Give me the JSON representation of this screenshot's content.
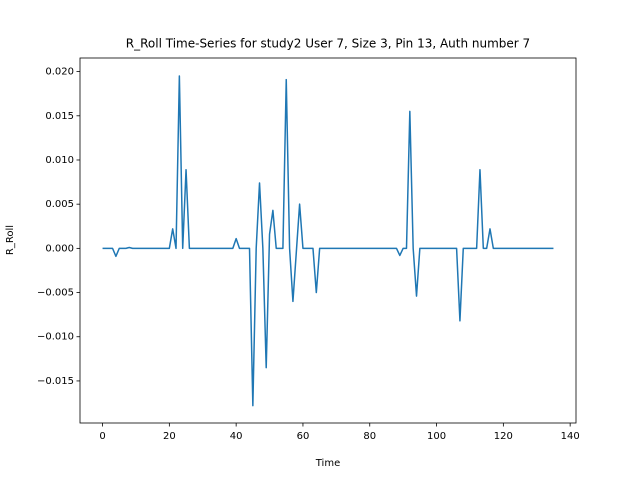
{
  "chart_data": {
    "type": "line",
    "title": "R_Roll Time-Series for study2 User 7, Size 3, Pin 13, Auth number 7",
    "x_label": "Time",
    "y_label": "R_Roll",
    "x": [
      0,
      1,
      2,
      3,
      4,
      5,
      6,
      7,
      8,
      9,
      10,
      11,
      12,
      13,
      14,
      15,
      16,
      17,
      18,
      19,
      20,
      21,
      22,
      23,
      24,
      25,
      26,
      27,
      28,
      29,
      30,
      31,
      32,
      33,
      34,
      35,
      36,
      37,
      38,
      39,
      40,
      41,
      42,
      43,
      44,
      45,
      46,
      47,
      48,
      49,
      50,
      51,
      52,
      53,
      54,
      55,
      56,
      57,
      58,
      59,
      60,
      61,
      62,
      63,
      64,
      65,
      66,
      67,
      68,
      69,
      70,
      71,
      72,
      73,
      74,
      75,
      76,
      77,
      78,
      79,
      80,
      81,
      82,
      83,
      84,
      85,
      86,
      87,
      88,
      89,
      90,
      91,
      92,
      93,
      94,
      95,
      96,
      97,
      98,
      99,
      100,
      101,
      102,
      103,
      104,
      105,
      106,
      107,
      108,
      109,
      110,
      111,
      112,
      113,
      114,
      115,
      116,
      117,
      118,
      119,
      120,
      121,
      122,
      123,
      124,
      125,
      126,
      127,
      128,
      129,
      130,
      131,
      132,
      133,
      134,
      135
    ],
    "series": [
      {
        "name": "R_Roll",
        "color": "#1f77b4",
        "values": [
          0,
          0,
          0,
          0,
          -0.0009,
          0,
          0,
          0,
          0.0001,
          0,
          0,
          0,
          0,
          0,
          0,
          0,
          0,
          0,
          0,
          0,
          0,
          0.0022,
          0,
          0.0195,
          0,
          0.0089,
          0,
          0,
          0,
          0,
          0,
          0,
          0,
          0,
          0,
          0,
          0,
          0,
          0,
          0,
          0.0011,
          0,
          0,
          0,
          0,
          -0.0178,
          0,
          0.0074,
          0,
          -0.0135,
          0.0016,
          0.0043,
          0,
          0,
          0,
          0.0191,
          0,
          -0.006,
          -0.0005,
          0.005,
          0,
          0,
          0,
          0,
          -0.005,
          0,
          0,
          0,
          0,
          0,
          0,
          0,
          0,
          0,
          0,
          0,
          0,
          0,
          0,
          0,
          0,
          0,
          0,
          0,
          0,
          0,
          0,
          0,
          0,
          -0.0008,
          0,
          0,
          0.0155,
          0,
          -0.0054,
          0,
          0,
          0,
          0,
          0,
          0,
          0,
          0,
          0,
          0,
          0,
          0,
          -0.0082,
          0,
          0,
          0,
          0,
          0,
          0.0089,
          0,
          0,
          0.0022,
          0,
          0,
          0,
          0,
          0,
          0,
          0,
          0,
          0,
          0,
          0,
          0,
          0,
          0,
          0,
          0,
          0,
          0,
          0
        ]
      }
    ],
    "xlim": [
      -6.75,
      141.75
    ],
    "ylim": [
      -0.01976,
      0.02154
    ],
    "xticks": [
      0,
      20,
      40,
      60,
      80,
      100,
      120,
      140
    ],
    "yticks": [
      {
        "value": -0.015,
        "label": "−0.015"
      },
      {
        "value": -0.01,
        "label": "−0.010"
      },
      {
        "value": -0.005,
        "label": "−0.005"
      },
      {
        "value": 0,
        "label": "0.000"
      },
      {
        "value": 0.005,
        "label": "0.005"
      },
      {
        "value": 0.01,
        "label": "0.010"
      },
      {
        "value": 0.015,
        "label": "0.015"
      },
      {
        "value": 0.02,
        "label": "0.020"
      }
    ],
    "grid": false
  }
}
